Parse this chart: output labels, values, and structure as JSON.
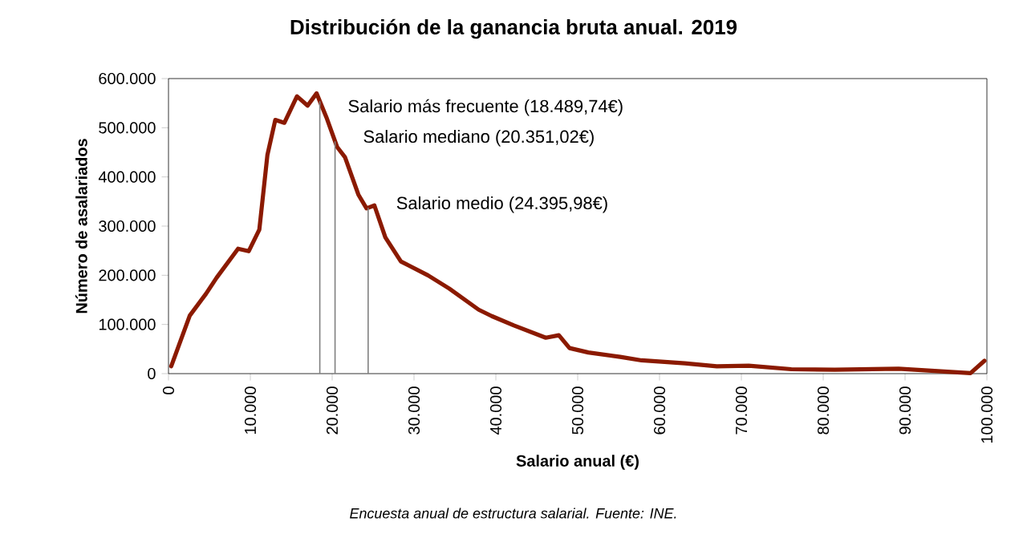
{
  "chart_data": {
    "type": "line",
    "title": "Distribución de la ganancia bruta anual. 2019",
    "xlabel": "Salario anual (€)",
    "ylabel": "Número de asalariados",
    "x": [
      330,
      2600,
      4570,
      5880,
      8500,
      9800,
      11100,
      12090,
      13050,
      14160,
      15700,
      17000,
      18100,
      19300,
      20600,
      21570,
      23200,
      24200,
      25160,
      26500,
      28400,
      31700,
      34300,
      37900,
      39500,
      42200,
      46100,
      47700,
      49000,
      51300,
      55200,
      57800,
      63100,
      67000,
      70900,
      76100,
      81400,
      89200,
      98000,
      99700
    ],
    "series": [
      {
        "color": "#8b1a00",
        "values": [
          15000,
          118000,
          162000,
          195000,
          254000,
          249000,
          293000,
          445000,
          516000,
          510000,
          564000,
          545000,
          570000,
          521000,
          461000,
          440000,
          364000,
          336000,
          342000,
          277000,
          228000,
          200000,
          173000,
          130000,
          117000,
          98000,
          73000,
          78000,
          52000,
          43000,
          34000,
          27000,
          21000,
          15000,
          16000,
          9000,
          8000,
          10000,
          1000,
          26000
        ]
      }
    ],
    "xlim": [
      0,
      100000
    ],
    "ylim": [
      0,
      600000
    ],
    "xticks": [
      0,
      {
        "value": 10000,
        "label": "10.000"
      },
      {
        "value": 20000,
        "label": "20.000"
      },
      {
        "value": 30000,
        "label": "30.000"
      },
      {
        "value": 40000,
        "label": "40.000"
      },
      {
        "value": 50000,
        "label": "50.000"
      },
      {
        "value": 60000,
        "label": "60.000"
      },
      {
        "value": 70000,
        "label": "70.000"
      },
      {
        "value": 80000,
        "label": "80.000"
      },
      {
        "value": 90000,
        "label": "90.000"
      },
      {
        "value": 100000,
        "label": "100.000"
      }
    ],
    "yticks": [
      0,
      {
        "value": 100000,
        "label": "100.000"
      },
      {
        "value": 200000,
        "label": "200.000"
      },
      {
        "value": 300000,
        "label": "300.000"
      },
      {
        "value": 400000,
        "label": "400.000"
      },
      {
        "value": 500000,
        "label": "500.000"
      },
      {
        "value": 600000,
        "label": "600.000"
      }
    ],
    "ref_lines": [
      {
        "axis": "x",
        "value": 18489.74,
        "label": "Salario más frecuente (18.489,74€)",
        "color": "#808080"
      },
      {
        "axis": "x",
        "value": 20351.02,
        "label": "Salario mediano (20.351,02€)",
        "color": "#808080"
      },
      {
        "axis": "x",
        "value": 24395.98,
        "label": "Salario medio (24.395,98€)",
        "color": "#808080"
      }
    ],
    "annotations": [
      "Encuesta anual de estructura salarial. Fuente: INE."
    ],
    "grid": false,
    "marker": "none",
    "line_style": "solid"
  }
}
